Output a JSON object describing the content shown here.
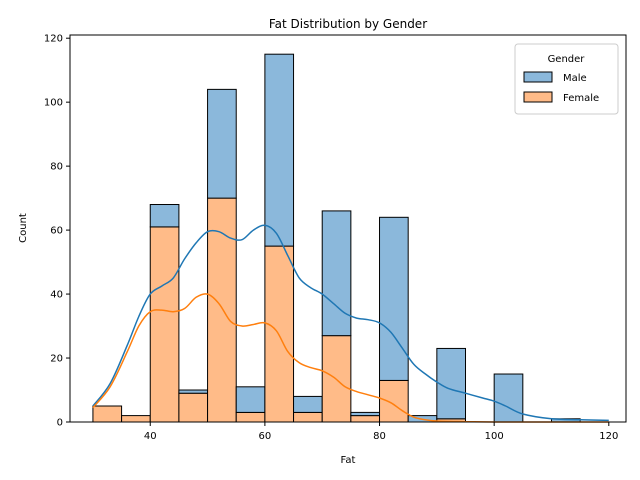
{
  "chart_data": {
    "type": "bar",
    "title": "Fat Distribution by Gender",
    "xlabel": "Fat",
    "ylabel": "Count",
    "xlim": [
      26,
      123
    ],
    "ylim": [
      0,
      121
    ],
    "xticks": [
      40,
      60,
      80,
      100,
      120
    ],
    "yticks": [
      0,
      20,
      40,
      60,
      80,
      100,
      120
    ],
    "grid": false,
    "stacked": true,
    "legend": {
      "title": "Gender",
      "position": "top-right"
    },
    "bins": [
      {
        "x0": 30,
        "x1": 35
      },
      {
        "x0": 35,
        "x1": 40
      },
      {
        "x0": 40,
        "x1": 45
      },
      {
        "x0": 45,
        "x1": 50
      },
      {
        "x0": 50,
        "x1": 55
      },
      {
        "x0": 55,
        "x1": 60
      },
      {
        "x0": 60,
        "x1": 65
      },
      {
        "x0": 65,
        "x1": 70
      },
      {
        "x0": 70,
        "x1": 75
      },
      {
        "x0": 75,
        "x1": 80
      },
      {
        "x0": 80,
        "x1": 85
      },
      {
        "x0": 85,
        "x1": 90
      },
      {
        "x0": 90,
        "x1": 95
      },
      {
        "x0": 95,
        "x1": 100
      },
      {
        "x0": 100,
        "x1": 105
      },
      {
        "x0": 105,
        "x1": 110
      },
      {
        "x0": 110,
        "x1": 115
      },
      {
        "x0": 115,
        "x1": 120
      }
    ],
    "series": [
      {
        "name": "Female",
        "color": "#ffbb88",
        "values": [
          5,
          2,
          61,
          9,
          70,
          3,
          55,
          3,
          27,
          2,
          13,
          0,
          1,
          0,
          0,
          0,
          0,
          0
        ]
      },
      {
        "name": "Male",
        "color": "#8bb8db",
        "values": [
          0,
          0,
          7,
          1,
          34,
          8,
          60,
          5,
          39,
          1,
          51,
          2,
          22,
          0,
          15,
          0,
          1,
          0
        ]
      }
    ],
    "kde": [
      {
        "name": "Male",
        "color": "#1f77b4",
        "x": [
          30,
          33,
          36,
          38,
          40,
          42,
          44,
          46,
          48,
          50,
          52,
          54,
          56,
          58,
          60,
          62,
          64,
          66,
          68,
          70,
          72,
          74,
          76,
          78,
          80,
          82,
          84,
          86,
          88,
          90,
          92,
          95,
          98,
          100,
          102,
          105,
          110,
          115,
          120
        ],
        "y": [
          5,
          12,
          24,
          33,
          40,
          42.5,
          45,
          51,
          56,
          59.5,
          59.5,
          57.5,
          57,
          60,
          61.5,
          59,
          52,
          45,
          42,
          40,
          37,
          34,
          32.5,
          32,
          31,
          28,
          23,
          18,
          15,
          12.5,
          10.5,
          9,
          7.5,
          6.5,
          5,
          2.5,
          1,
          0.7,
          0.5
        ]
      },
      {
        "name": "Female",
        "color": "#ff7f0e",
        "x": [
          30,
          33,
          36,
          38,
          40,
          42,
          44,
          46,
          48,
          50,
          52,
          54,
          56,
          58,
          60,
          62,
          64,
          66,
          68,
          70,
          72,
          74,
          76,
          78,
          80,
          82,
          84,
          86,
          88,
          90,
          95,
          100,
          110,
          120
        ],
        "y": [
          4.5,
          11,
          22,
          30,
          34.5,
          35,
          34.5,
          35.5,
          39,
          40,
          37,
          31.5,
          30,
          30.5,
          31,
          28.5,
          22,
          18.5,
          17,
          16,
          14,
          11,
          9.5,
          8.5,
          7.5,
          6,
          3.5,
          1.5,
          0.7,
          0.3,
          0.1,
          0,
          0,
          0
        ]
      }
    ]
  }
}
